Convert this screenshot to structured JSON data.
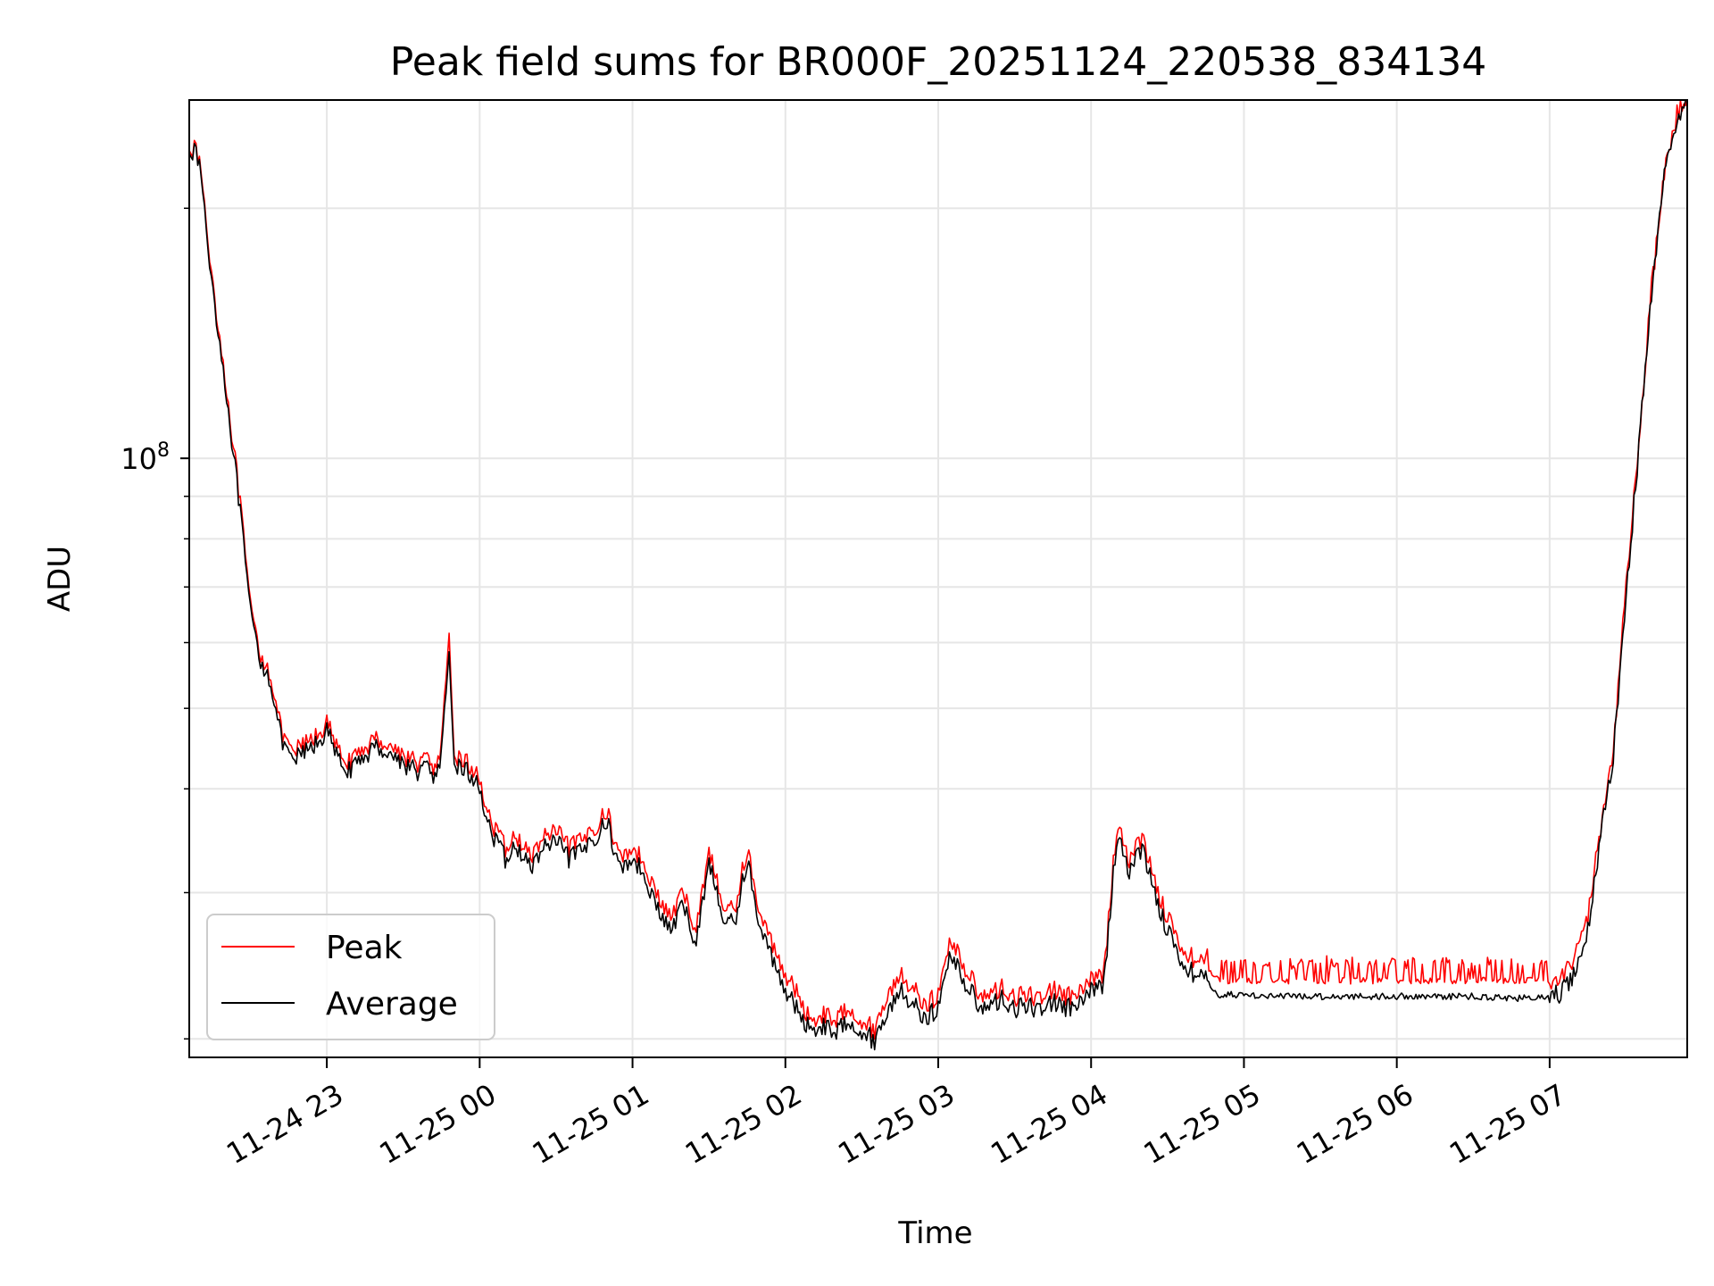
{
  "chart_data": {
    "type": "line",
    "title": "Peak field sums for BR000F_20251124_220538_834134",
    "xlabel": "Time",
    "ylabel": "ADU",
    "y_scale": "log",
    "grid": true,
    "legend_position": "lower-left",
    "x_range": [
      "11-24 22:06",
      "11-25 07:54"
    ],
    "y_range": [
      19000000,
      270000000
    ],
    "x_ticks": [
      "11-24 23",
      "11-25 00",
      "11-25 01",
      "11-25 02",
      "11-25 03",
      "11-25 04",
      "11-25 05",
      "11-25 06",
      "11-25 07"
    ],
    "y_tick_label": {
      "base": "10",
      "exp": "8",
      "value": 100000000
    },
    "series": [
      {
        "name": "Peak",
        "color": "#ff0000",
        "x": [
          "11-24 22:06",
          "11-24 22:10",
          "11-24 22:14",
          "11-24 22:18",
          "11-24 22:22",
          "11-24 22:26",
          "11-24 22:30",
          "11-24 22:34",
          "11-24 22:38",
          "11-24 22:42",
          "11-24 22:46",
          "11-24 22:50",
          "11-24 22:55",
          "11-24 23:00",
          "11-24 23:05",
          "11-24 23:10",
          "11-24 23:15",
          "11-24 23:20",
          "11-24 23:25",
          "11-24 23:30",
          "11-24 23:35",
          "11-24 23:40",
          "11-24 23:43",
          "11-24 23:45",
          "11-24 23:48",
          "11-24 23:50",
          "11-24 23:55",
          "11-25 00:00",
          "11-25 00:05",
          "11-25 00:10",
          "11-25 00:15",
          "11-25 00:20",
          "11-25 00:25",
          "11-25 00:30",
          "11-25 00:35",
          "11-25 00:40",
          "11-25 00:45",
          "11-25 00:50",
          "11-25 00:55",
          "11-25 01:00",
          "11-25 01:05",
          "11-25 01:10",
          "11-25 01:15",
          "11-25 01:20",
          "11-25 01:25",
          "11-25 01:30",
          "11-25 01:35",
          "11-25 01:40",
          "11-25 01:45",
          "11-25 01:50",
          "11-25 01:55",
          "11-25 02:00",
          "11-25 02:05",
          "11-25 02:10",
          "11-25 02:15",
          "11-25 02:20",
          "11-25 02:25",
          "11-25 02:30",
          "11-25 02:35",
          "11-25 02:40",
          "11-25 02:45",
          "11-25 02:50",
          "11-25 02:55",
          "11-25 03:00",
          "11-25 03:05",
          "11-25 03:10",
          "11-25 03:15",
          "11-25 03:20",
          "11-25 03:25",
          "11-25 03:30",
          "11-25 03:35",
          "11-25 03:40",
          "11-25 03:45",
          "11-25 03:50",
          "11-25 03:55",
          "11-25 04:00",
          "11-25 04:05",
          "11-25 04:10",
          "11-25 04:15",
          "11-25 04:20",
          "11-25 04:25",
          "11-25 04:30",
          "11-25 04:35",
          "11-25 04:40",
          "11-25 04:45",
          "11-25 04:50",
          "11-25 05:00",
          "11-25 05:15",
          "11-25 05:30",
          "11-25 05:45",
          "11-25 06:00",
          "11-25 06:15",
          "11-25 06:30",
          "11-25 06:45",
          "11-25 07:00",
          "11-25 07:05",
          "11-25 07:10",
          "11-25 07:15",
          "11-25 07:20",
          "11-25 07:25",
          "11-25 07:30",
          "11-25 07:35",
          "11-25 07:40",
          "11-25 07:45",
          "11-25 07:50",
          "11-25 07:54"
        ],
        "y": [
          240000000,
          230000000,
          175000000,
          140000000,
          112000000,
          88000000,
          66000000,
          58000000,
          55000000,
          47000000,
          44000000,
          45000000,
          46000000,
          48000000,
          44000000,
          43000000,
          45000000,
          46000000,
          45000000,
          44000000,
          43000000,
          43500000,
          42000000,
          45000000,
          60000000,
          44000000,
          43000000,
          41000000,
          36000000,
          34000000,
          35000000,
          33000000,
          35000000,
          35500000,
          34000000,
          34500000,
          36000000,
          37500000,
          33000000,
          34000000,
          32500000,
          29500000,
          28000000,
          30000000,
          27000000,
          34000000,
          29000000,
          28500000,
          34000000,
          28000000,
          26000000,
          24000000,
          22500000,
          21000000,
          21500000,
          21000000,
          22000000,
          21000000,
          20500000,
          22500000,
          24000000,
          23000000,
          22000000,
          22500000,
          26500000,
          24500000,
          23000000,
          22500000,
          23000000,
          22500000,
          22500000,
          22500000,
          23000000,
          22500000,
          22500000,
          23500000,
          24000000,
          36000000,
          33000000,
          35000000,
          31000000,
          28000000,
          26000000,
          25000000,
          24500000,
          23500000,
          23500000,
          23500000,
          23500000,
          23500000,
          23500000,
          23500000,
          23500000,
          23500000,
          23500000,
          24000000,
          25000000,
          28000000,
          36000000,
          45000000,
          70000000,
          105000000,
          160000000,
          220000000,
          260000000,
          275000000
        ]
      },
      {
        "name": "Average",
        "color": "#000000",
        "x": [
          "11-24 22:06",
          "11-24 22:10",
          "11-24 22:14",
          "11-24 22:18",
          "11-24 22:22",
          "11-24 22:26",
          "11-24 22:30",
          "11-24 22:34",
          "11-24 22:38",
          "11-24 22:42",
          "11-24 22:46",
          "11-24 22:50",
          "11-24 22:55",
          "11-24 23:00",
          "11-24 23:05",
          "11-24 23:10",
          "11-24 23:15",
          "11-24 23:20",
          "11-24 23:25",
          "11-24 23:30",
          "11-24 23:35",
          "11-24 23:40",
          "11-24 23:43",
          "11-24 23:45",
          "11-24 23:48",
          "11-24 23:50",
          "11-24 23:55",
          "11-25 00:00",
          "11-25 00:05",
          "11-25 00:10",
          "11-25 00:15",
          "11-25 00:20",
          "11-25 00:25",
          "11-25 00:30",
          "11-25 00:35",
          "11-25 00:40",
          "11-25 00:45",
          "11-25 00:50",
          "11-25 00:55",
          "11-25 01:00",
          "11-25 01:05",
          "11-25 01:10",
          "11-25 01:15",
          "11-25 01:20",
          "11-25 01:25",
          "11-25 01:30",
          "11-25 01:35",
          "11-25 01:40",
          "11-25 01:45",
          "11-25 01:50",
          "11-25 01:55",
          "11-25 02:00",
          "11-25 02:05",
          "11-25 02:10",
          "11-25 02:15",
          "11-25 02:20",
          "11-25 02:25",
          "11-25 02:30",
          "11-25 02:35",
          "11-25 02:40",
          "11-25 02:45",
          "11-25 02:50",
          "11-25 02:55",
          "11-25 03:00",
          "11-25 03:05",
          "11-25 03:10",
          "11-25 03:15",
          "11-25 03:20",
          "11-25 03:25",
          "11-25 03:30",
          "11-25 03:35",
          "11-25 03:40",
          "11-25 03:45",
          "11-25 03:50",
          "11-25 03:55",
          "11-25 04:00",
          "11-25 04:05",
          "11-25 04:10",
          "11-25 04:15",
          "11-25 04:20",
          "11-25 04:25",
          "11-25 04:30",
          "11-25 04:35",
          "11-25 04:40",
          "11-25 04:45",
          "11-25 04:50",
          "11-25 05:00",
          "11-25 05:15",
          "11-25 05:30",
          "11-25 05:45",
          "11-25 06:00",
          "11-25 06:15",
          "11-25 06:30",
          "11-25 06:45",
          "11-25 07:00",
          "11-25 07:05",
          "11-25 07:10",
          "11-25 07:15",
          "11-25 07:20",
          "11-25 07:25",
          "11-25 07:30",
          "11-25 07:35",
          "11-25 07:40",
          "11-25 07:45",
          "11-25 07:50",
          "11-25 07:54"
        ],
        "y": [
          238000000,
          228000000,
          172000000,
          138000000,
          110000000,
          86000000,
          65000000,
          57000000,
          54000000,
          46000000,
          43000000,
          44000000,
          45000000,
          47000000,
          43000000,
          42000000,
          44000000,
          45000000,
          44000000,
          43000000,
          42000000,
          42500000,
          41000000,
          44000000,
          57000000,
          43000000,
          42000000,
          40000000,
          35000000,
          33000000,
          34000000,
          32000000,
          34000000,
          34500000,
          33000000,
          33500000,
          35000000,
          36500000,
          32000000,
          33000000,
          31500000,
          28500000,
          27000000,
          29000000,
          26000000,
          33000000,
          28000000,
          27500000,
          33000000,
          27000000,
          25000000,
          23000000,
          21500000,
          20500000,
          20800000,
          20300000,
          21200000,
          20400000,
          19900000,
          21500000,
          23000000,
          22000000,
          21200000,
          21700000,
          25500000,
          23500000,
          22200000,
          21800000,
          22300000,
          21800000,
          21800000,
          21800000,
          22200000,
          21800000,
          21800000,
          22800000,
          23300000,
          35000000,
          32000000,
          34000000,
          30000000,
          27000000,
          25000000,
          24000000,
          23500000,
          22600000,
          22600000,
          22500000,
          22500000,
          22500000,
          22500000,
          22500000,
          22500000,
          22400000,
          22400000,
          22800000,
          24000000,
          27000000,
          35000000,
          44000000,
          68000000,
          103000000,
          157000000,
          217000000,
          257000000,
          272000000
        ]
      }
    ]
  }
}
